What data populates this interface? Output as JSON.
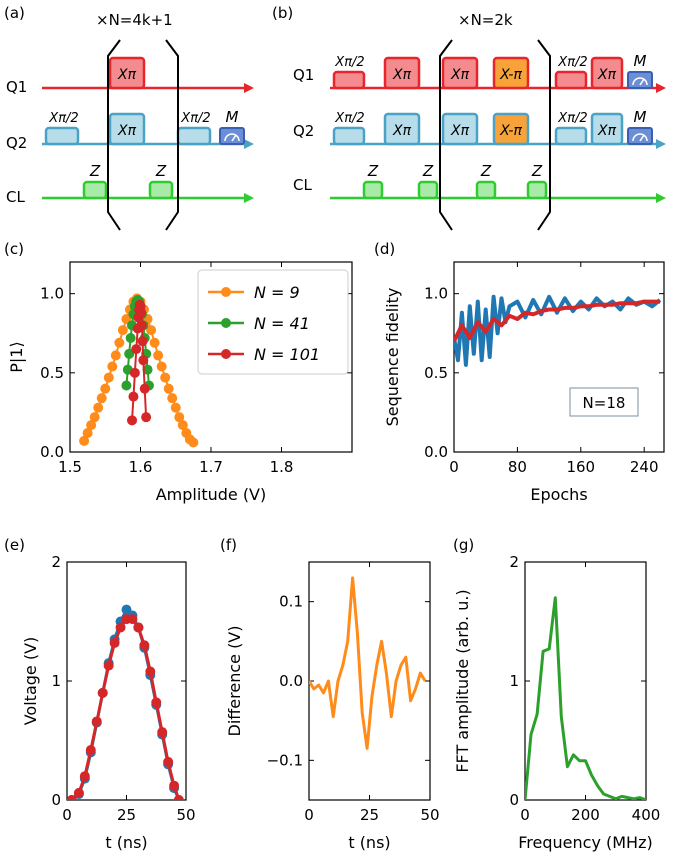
{
  "panel_labels": {
    "a": "(a)",
    "b": "(b)",
    "c": "(c)",
    "d": "(d)",
    "e": "(e)",
    "f": "(f)",
    "g": "(g)"
  },
  "colors": {
    "q1": "#e8252b",
    "q2": "#4aa3c4",
    "cl": "#2ecc2e",
    "orange": "#ff8c1a",
    "green": "#2ca02c",
    "red": "#d62728",
    "blue": "#1f77b4",
    "measure": "#6b8fd6"
  },
  "pulse_a": {
    "repeat": "×N=4k+1",
    "rows": [
      "Q1",
      "Q2",
      "CL"
    ],
    "q1_pulses": [
      "Xπ"
    ],
    "q2_pulses": [
      "Xπ/2",
      "Xπ",
      "Xπ/2"
    ],
    "q2_measure": "M",
    "cl_pulses": [
      "Z",
      "Z"
    ]
  },
  "pulse_b": {
    "repeat": "×N=2k",
    "rows": [
      "Q1",
      "Q2",
      "CL"
    ],
    "q1_pulses": [
      "Xπ/2",
      "Xπ",
      "Xπ",
      "X-π",
      "Xπ/2",
      "Xπ"
    ],
    "q1_measure": "M",
    "q2_pulses": [
      "Xπ/2",
      "Xπ",
      "Xπ",
      "X-π",
      "Xπ/2",
      "Xπ"
    ],
    "q2_measure": "M",
    "cl_pulses": [
      "Z",
      "Z",
      "Z",
      "Z"
    ]
  },
  "chart_data": [
    {
      "id": "c",
      "type": "line",
      "title": "",
      "xlabel": "Amplitude (V)",
      "ylabel": "P|1⟩",
      "xlim": [
        1.5,
        1.9
      ],
      "ylim": [
        0.0,
        1.2
      ],
      "xticks": [
        "1.5",
        "1.6",
        "1.7",
        "1.8"
      ],
      "yticks": [
        "0.0",
        "0.5",
        "1.0"
      ],
      "legend_position": "top-right",
      "series": [
        {
          "name": "N = 9",
          "color": "#ff8c1a",
          "x": [
            1.52,
            1.525,
            1.53,
            1.535,
            1.54,
            1.545,
            1.55,
            1.555,
            1.56,
            1.565,
            1.57,
            1.575,
            1.58,
            1.585,
            1.59,
            1.595,
            1.6,
            1.605,
            1.61,
            1.615,
            1.62,
            1.625,
            1.63,
            1.635,
            1.64,
            1.645,
            1.65,
            1.655,
            1.66,
            1.665,
            1.67,
            1.675
          ],
          "y": [
            0.07,
            0.12,
            0.17,
            0.22,
            0.28,
            0.34,
            0.4,
            0.47,
            0.54,
            0.61,
            0.69,
            0.77,
            0.84,
            0.9,
            0.95,
            0.97,
            0.95,
            0.9,
            0.84,
            0.77,
            0.69,
            0.61,
            0.54,
            0.47,
            0.4,
            0.34,
            0.28,
            0.22,
            0.17,
            0.12,
            0.08,
            0.06
          ]
        },
        {
          "name": "N = 41",
          "color": "#2ca02c",
          "x": [
            1.58,
            1.582,
            1.584,
            1.586,
            1.588,
            1.59,
            1.592,
            1.594,
            1.596,
            1.598,
            1.6,
            1.602,
            1.604,
            1.606,
            1.608,
            1.61,
            1.612
          ],
          "y": [
            0.42,
            0.52,
            0.62,
            0.72,
            0.8,
            0.87,
            0.92,
            0.95,
            0.96,
            0.95,
            0.92,
            0.87,
            0.8,
            0.72,
            0.62,
            0.52,
            0.42
          ]
        },
        {
          "name": "N = 101",
          "color": "#d62728",
          "x": [
            1.588,
            1.59,
            1.592,
            1.594,
            1.596,
            1.597,
            1.598,
            1.599,
            1.6,
            1.601,
            1.602,
            1.603,
            1.604,
            1.606,
            1.608
          ],
          "y": [
            0.2,
            0.35,
            0.5,
            0.65,
            0.78,
            0.85,
            0.9,
            0.93,
            0.92,
            0.88,
            0.8,
            0.7,
            0.58,
            0.4,
            0.22
          ]
        }
      ]
    },
    {
      "id": "d",
      "type": "line",
      "title": "",
      "xlabel": "Epochs",
      "ylabel": "Sequence fidelity",
      "xlim": [
        0,
        265
      ],
      "ylim": [
        0.0,
        1.2
      ],
      "xticks": [
        "0",
        "80",
        "160",
        "240"
      ],
      "yticks": [
        "0.0",
        "0.5",
        "1.0"
      ],
      "annotation": "N=18",
      "series": [
        {
          "name": "",
          "color": "#1f77b4",
          "x": [
            0,
            5,
            10,
            15,
            20,
            25,
            30,
            35,
            40,
            45,
            50,
            55,
            60,
            65,
            70,
            80,
            90,
            100,
            110,
            120,
            130,
            140,
            150,
            160,
            170,
            180,
            190,
            200,
            210,
            220,
            230,
            240,
            250,
            260
          ],
          "y": [
            0.72,
            0.58,
            0.88,
            0.55,
            0.92,
            0.62,
            0.95,
            0.58,
            0.9,
            0.6,
            0.98,
            0.75,
            0.97,
            0.82,
            0.92,
            0.95,
            0.85,
            0.96,
            0.87,
            0.98,
            0.88,
            0.97,
            0.89,
            0.95,
            0.9,
            0.97,
            0.92,
            0.95,
            0.9,
            0.97,
            0.93,
            0.95,
            0.92,
            0.96
          ]
        },
        {
          "name": "",
          "color": "#d62728",
          "x": [
            0,
            10,
            20,
            30,
            40,
            50,
            60,
            70,
            80,
            90,
            100,
            110,
            120,
            130,
            140,
            150,
            160,
            170,
            180,
            190,
            200,
            210,
            220,
            230,
            240,
            250,
            260
          ],
          "y": [
            0.7,
            0.8,
            0.72,
            0.82,
            0.76,
            0.84,
            0.8,
            0.86,
            0.84,
            0.88,
            0.87,
            0.89,
            0.9,
            0.9,
            0.91,
            0.91,
            0.92,
            0.92,
            0.93,
            0.93,
            0.93,
            0.94,
            0.94,
            0.94,
            0.95,
            0.95,
            0.95
          ]
        }
      ]
    },
    {
      "id": "e",
      "type": "line",
      "title": "",
      "xlabel": "t (ns)",
      "ylabel": "Voltage (V)",
      "xlim": [
        0,
        50
      ],
      "ylim": [
        0,
        2
      ],
      "xticks": [
        "0",
        "25",
        "50"
      ],
      "yticks": [
        "0",
        "1",
        "2"
      ],
      "series": [
        {
          "name": "",
          "color": "#1f77b4",
          "x": [
            2,
            5,
            7.5,
            10,
            12.5,
            15,
            17.5,
            20,
            22.5,
            25,
            27.5,
            30,
            32.5,
            35,
            37.5,
            40,
            42.5,
            45,
            47
          ],
          "y": [
            0.0,
            0.05,
            0.18,
            0.4,
            0.65,
            0.9,
            1.15,
            1.35,
            1.5,
            1.6,
            1.55,
            1.45,
            1.28,
            1.05,
            0.8,
            0.55,
            0.3,
            0.1,
            0.0
          ]
        },
        {
          "name": "",
          "color": "#d62728",
          "x": [
            2,
            5,
            7.5,
            10,
            12.5,
            15,
            17.5,
            20,
            22.5,
            25,
            27.5,
            30,
            32.5,
            35,
            37.5,
            40,
            42.5,
            45,
            47
          ],
          "y": [
            0.0,
            0.06,
            0.2,
            0.42,
            0.66,
            0.9,
            1.13,
            1.32,
            1.45,
            1.52,
            1.52,
            1.45,
            1.3,
            1.08,
            0.82,
            0.57,
            0.32,
            0.12,
            0.0
          ]
        }
      ]
    },
    {
      "id": "f",
      "type": "line",
      "title": "",
      "xlabel": "t (ns)",
      "ylabel": "Difference (V)",
      "xlim": [
        0,
        50
      ],
      "ylim": [
        -0.15,
        0.15
      ],
      "xticks": [
        "0",
        "25",
        "50"
      ],
      "yticks": [
        "0.1",
        "0.0",
        "−0.1"
      ],
      "series": [
        {
          "name": "",
          "color": "#ff8c1a",
          "x": [
            0,
            2,
            4,
            6,
            8,
            10,
            12,
            14,
            16,
            18,
            20,
            22,
            24,
            26,
            28,
            30,
            32,
            34,
            36,
            38,
            40,
            42,
            44,
            46,
            48
          ],
          "y": [
            0.0,
            -0.01,
            -0.005,
            -0.015,
            0.0,
            -0.045,
            0.0,
            0.02,
            0.05,
            0.13,
            0.06,
            -0.04,
            -0.085,
            -0.02,
            0.02,
            0.05,
            0.01,
            -0.045,
            0.0,
            0.02,
            0.03,
            -0.025,
            -0.01,
            0.01,
            0.0
          ]
        }
      ]
    },
    {
      "id": "g",
      "type": "line",
      "title": "",
      "xlabel": "Frequency (MHz)",
      "ylabel": "FFT amplitude (arb. u.)",
      "xlim": [
        0,
        400
      ],
      "ylim": [
        0,
        2
      ],
      "xticks": [
        "0",
        "200",
        "400"
      ],
      "yticks": [
        "0",
        "1",
        "2"
      ],
      "series": [
        {
          "name": "",
          "color": "#2ca02c",
          "x": [
            0,
            20,
            40,
            60,
            80,
            100,
            120,
            140,
            160,
            180,
            200,
            220,
            240,
            260,
            280,
            300,
            320,
            340,
            360,
            380,
            400
          ],
          "y": [
            0.0,
            0.55,
            0.72,
            1.25,
            1.27,
            1.7,
            0.7,
            0.28,
            0.38,
            0.33,
            0.33,
            0.21,
            0.12,
            0.05,
            0.03,
            0.01,
            0.03,
            0.02,
            0.01,
            0.02,
            0.0
          ]
        }
      ]
    }
  ]
}
